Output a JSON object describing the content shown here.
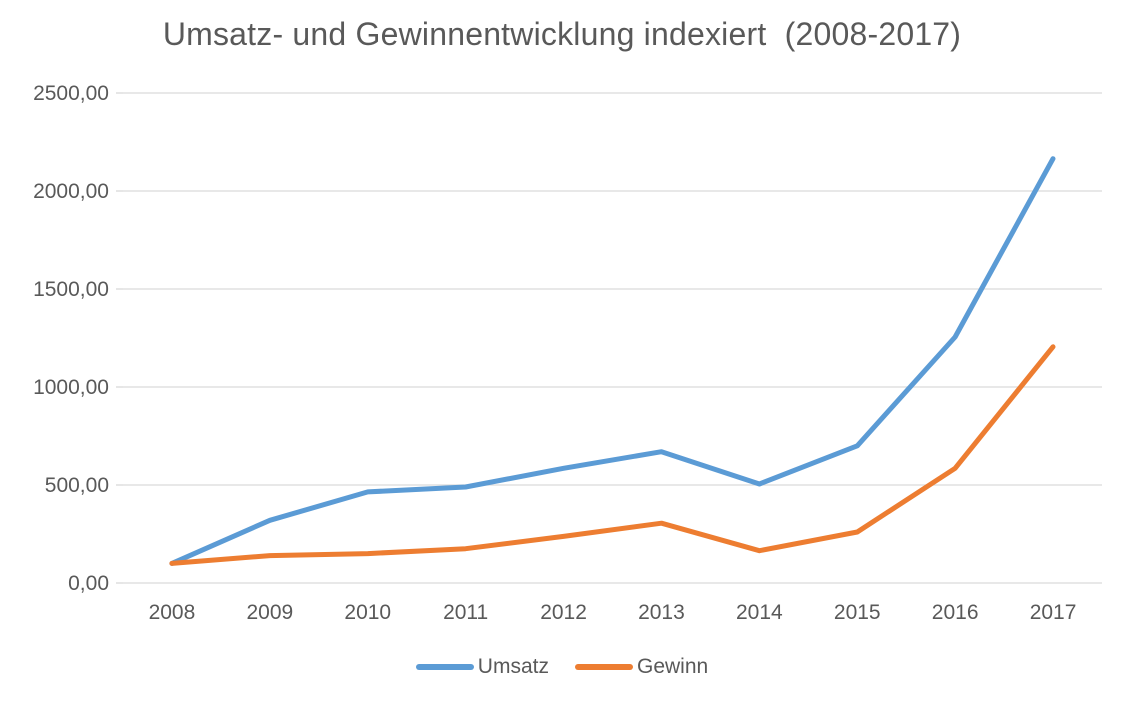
{
  "chart_data": {
    "type": "line",
    "title": "Umsatz- und Gewinnentwicklung indexiert  (2008-2017)",
    "categories": [
      "2008",
      "2009",
      "2010",
      "2011",
      "2012",
      "2013",
      "2014",
      "2015",
      "2016",
      "2017"
    ],
    "series": [
      {
        "name": "Umsatz",
        "color": "#5B9BD5",
        "values": [
          100,
          320,
          465,
          490,
          585,
          670,
          505,
          700,
          1255,
          2165
        ]
      },
      {
        "name": "Gewinn",
        "color": "#ED7D31",
        "values": [
          100,
          140,
          150,
          175,
          238,
          305,
          165,
          260,
          585,
          1205
        ]
      }
    ],
    "xlabel": "",
    "ylabel": "",
    "ylim": [
      0,
      2500
    ],
    "y_ticks": [
      {
        "value": 0,
        "label": "0,00"
      },
      {
        "value": 500,
        "label": "500,00"
      },
      {
        "value": 1000,
        "label": "1000,00"
      },
      {
        "value": 1500,
        "label": "1500,00"
      },
      {
        "value": 2000,
        "label": "2000,00"
      },
      {
        "value": 2500,
        "label": "2500,00"
      }
    ],
    "grid": true,
    "legend_position": "bottom"
  },
  "colors": {
    "text": "#595959",
    "gridline": "#D9D9D9",
    "background": "#FFFFFF",
    "series_umsatz": "#5B9BD5",
    "series_gewinn": "#ED7D31"
  }
}
